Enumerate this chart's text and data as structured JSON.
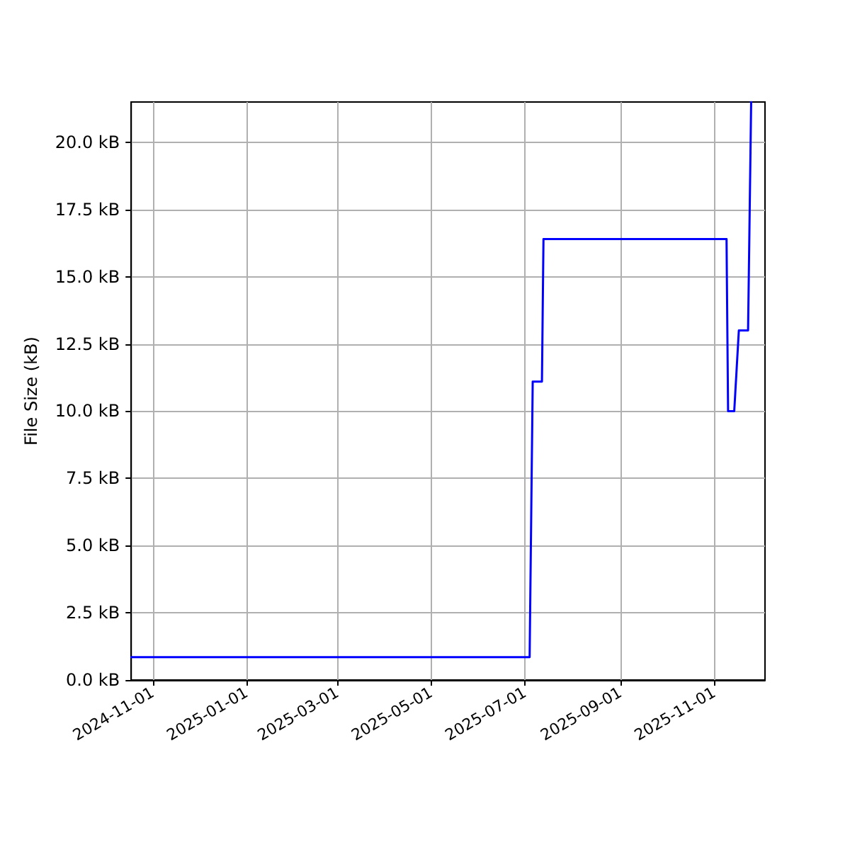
{
  "chart_data": {
    "type": "line",
    "ylabel": "File Size (kB)",
    "x": [
      "2024-10-18",
      "2025-07-04",
      "2025-07-06",
      "2025-07-12",
      "2025-07-13",
      "2025-11-09",
      "2025-11-10",
      "2025-11-14",
      "2025-11-17",
      "2025-11-23",
      "2025-11-25"
    ],
    "series": [
      {
        "color": "#0000ff",
        "values": [
          0.85,
          0.85,
          11.1,
          11.1,
          16.4,
          16.4,
          10.0,
          10.0,
          13.0,
          13.0,
          21.5
        ]
      }
    ],
    "xlim": [
      "2024-10-18",
      "2025-12-04"
    ],
    "xticks": [
      "2024-11-01",
      "2025-01-01",
      "2025-03-01",
      "2025-05-01",
      "2025-07-01",
      "2025-09-01",
      "2025-11-01"
    ],
    "ylim": [
      0,
      21.5
    ],
    "yticks": [
      {
        "value": 0,
        "label": "0.0 kB"
      },
      {
        "value": 2.5,
        "label": "2.5 kB"
      },
      {
        "value": 5,
        "label": "5.0 kB"
      },
      {
        "value": 7.5,
        "label": "7.5 kB"
      },
      {
        "value": 10,
        "label": "10.0 kB"
      },
      {
        "value": 12.5,
        "label": "12.5 kB"
      },
      {
        "value": 15,
        "label": "15.0 kB"
      },
      {
        "value": 17.5,
        "label": "17.5 kB"
      },
      {
        "value": 20,
        "label": "20.0 kB"
      }
    ],
    "grid": true,
    "marker": "none",
    "line_style": "solid"
  }
}
